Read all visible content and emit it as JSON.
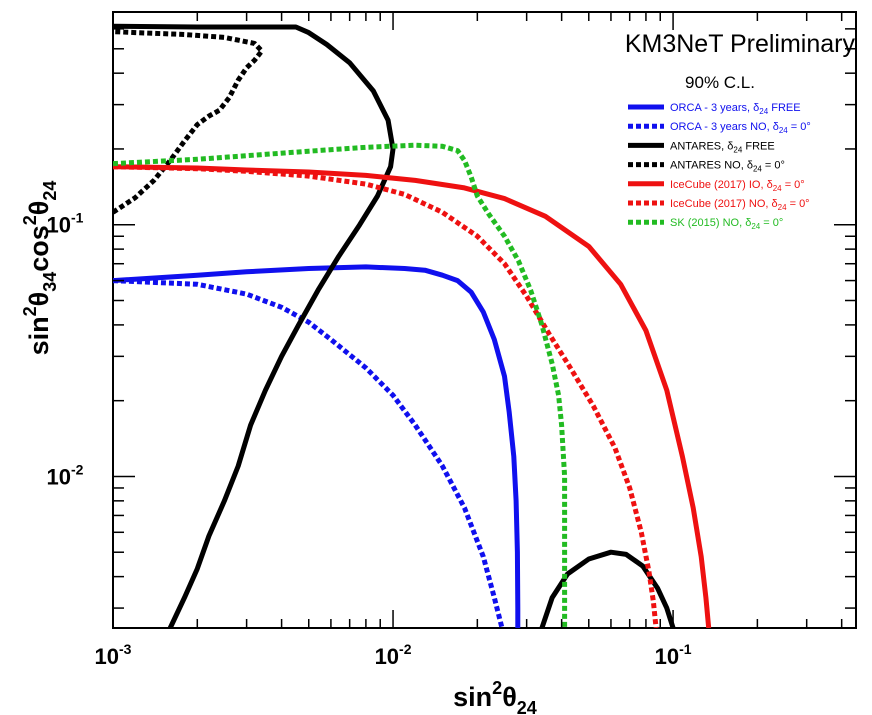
{
  "chart_data": {
    "type": "line",
    "title": "KM3NeT Preliminary",
    "subtitle": "90% C.L.",
    "xscale": "log",
    "yscale": "log",
    "xlim": [
      0.001,
      0.45
    ],
    "ylim": [
      0.0025,
      0.7
    ],
    "x_ticks": [
      {
        "value": 0.001,
        "base": "10",
        "exp": "-3"
      },
      {
        "value": 0.01,
        "base": "10",
        "exp": "-2"
      },
      {
        "value": 0.1,
        "base": "10",
        "exp": "-1"
      }
    ],
    "y_ticks": [
      {
        "value": 0.01,
        "base": "10",
        "exp": "-2"
      },
      {
        "value": 0.1,
        "base": "10",
        "exp": "-1"
      }
    ],
    "xlabel": {
      "base": "sin",
      "sup": "2",
      "theta": "θ",
      "sub": "24"
    },
    "ylabel": {
      "base1": "sin",
      "sup1": "2",
      "theta1": "θ",
      "sub1": "34",
      "base2": "cos",
      "sup2": "2",
      "theta2": "θ",
      "sub2": "24"
    },
    "grid": false,
    "legend_position": "top-right",
    "series": [
      {
        "key": "orca_free",
        "legend": {
          "pre": "ORCA - 3 years, ",
          "delta": "δ",
          "sub": "24",
          "post": " FREE"
        },
        "color": "#1010ee",
        "dash": "solid",
        "segments": [
          [
            [
              0.001,
              0.06
            ],
            [
              0.002,
              0.063
            ],
            [
              0.003,
              0.065
            ],
            [
              0.005,
              0.067
            ],
            [
              0.008,
              0.068
            ],
            [
              0.011,
              0.067
            ],
            [
              0.013,
              0.066
            ],
            [
              0.015,
              0.063
            ],
            [
              0.017,
              0.06
            ],
            [
              0.019,
              0.054
            ],
            [
              0.021,
              0.045
            ],
            [
              0.023,
              0.035
            ],
            [
              0.025,
              0.025
            ],
            [
              0.026,
              0.018
            ],
            [
              0.027,
              0.012
            ],
            [
              0.0275,
              0.008
            ],
            [
              0.0278,
              0.005
            ],
            [
              0.0279,
              0.003
            ],
            [
              0.0279,
              0.0025
            ]
          ]
        ]
      },
      {
        "key": "orca_no",
        "legend": {
          "pre": "ORCA - 3 years NO, ",
          "delta": "δ",
          "sub": "24",
          "post": " = 0°"
        },
        "color": "#1010ee",
        "dash": "dotted",
        "segments": [
          [
            [
              0.001,
              0.06
            ],
            [
              0.002,
              0.058
            ],
            [
              0.003,
              0.053
            ],
            [
              0.004,
              0.047
            ],
            [
              0.005,
              0.041
            ],
            [
              0.006,
              0.035
            ],
            [
              0.008,
              0.027
            ],
            [
              0.01,
              0.021
            ],
            [
              0.012,
              0.016
            ],
            [
              0.015,
              0.011
            ],
            [
              0.018,
              0.0075
            ],
            [
              0.021,
              0.0048
            ],
            [
              0.023,
              0.0033
            ],
            [
              0.0245,
              0.0025
            ]
          ]
        ]
      },
      {
        "key": "antares_free",
        "legend": {
          "pre": "ANTARES, ",
          "delta": "δ",
          "sub": "24",
          "post": " FREE"
        },
        "color": "#000000",
        "dash": "solid",
        "segments": [
          [
            [
              0.0016,
              0.0025
            ],
            [
              0.0018,
              0.0033
            ],
            [
              0.002,
              0.0043
            ],
            [
              0.0022,
              0.0058
            ],
            [
              0.0025,
              0.008
            ],
            [
              0.0028,
              0.011
            ],
            [
              0.0031,
              0.016
            ],
            [
              0.0035,
              0.022
            ],
            [
              0.004,
              0.03
            ],
            [
              0.0046,
              0.04
            ],
            [
              0.0054,
              0.055
            ],
            [
              0.0064,
              0.075
            ],
            [
              0.0076,
              0.1
            ],
            [
              0.0088,
              0.13
            ],
            [
              0.0098,
              0.17
            ],
            [
              0.01,
              0.2
            ],
            [
              0.0096,
              0.26
            ],
            [
              0.0085,
              0.34
            ],
            [
              0.007,
              0.44
            ],
            [
              0.0058,
              0.52
            ],
            [
              0.005,
              0.58
            ],
            [
              0.0045,
              0.61
            ],
            [
              0.003,
              0.61
            ],
            [
              0.002,
              0.61
            ],
            [
              0.001,
              0.615
            ]
          ],
          [
            [
              0.034,
              0.0025
            ],
            [
              0.037,
              0.0033
            ],
            [
              0.042,
              0.0041
            ],
            [
              0.05,
              0.0047
            ],
            [
              0.06,
              0.005
            ],
            [
              0.068,
              0.0049
            ],
            [
              0.078,
              0.0044
            ],
            [
              0.088,
              0.0036
            ],
            [
              0.095,
              0.003
            ],
            [
              0.1,
              0.0025
            ]
          ]
        ]
      },
      {
        "key": "antares_no",
        "legend": {
          "pre": "ANTARES NO, ",
          "delta": "δ",
          "sub": "24",
          "post": " = 0°"
        },
        "color": "#000000",
        "dash": "dotted",
        "segments": [
          [
            [
              0.001,
              0.112
            ],
            [
              0.0012,
              0.128
            ],
            [
              0.0014,
              0.15
            ],
            [
              0.0016,
              0.18
            ],
            [
              0.0018,
              0.215
            ],
            [
              0.002,
              0.25
            ],
            [
              0.0022,
              0.27
            ],
            [
              0.0024,
              0.285
            ],
            [
              0.0026,
              0.32
            ],
            [
              0.0028,
              0.375
            ],
            [
              0.003,
              0.42
            ],
            [
              0.0032,
              0.45
            ],
            [
              0.0034,
              0.49
            ],
            [
              0.0032,
              0.525
            ],
            [
              0.0025,
              0.555
            ],
            [
              0.0018,
              0.57
            ],
            [
              0.0012,
              0.58
            ],
            [
              0.001,
              0.585
            ]
          ]
        ]
      },
      {
        "key": "icecube_io",
        "legend": {
          "pre": "IceCube (2017) IO, ",
          "delta": "δ",
          "sub": "24",
          "post": " = 0°"
        },
        "color": "#ee1111",
        "dash": "solid",
        "segments": [
          [
            [
              0.001,
              0.17
            ],
            [
              0.002,
              0.168
            ],
            [
              0.003,
              0.165
            ],
            [
              0.005,
              0.162
            ],
            [
              0.008,
              0.157
            ],
            [
              0.012,
              0.15
            ],
            [
              0.018,
              0.14
            ],
            [
              0.025,
              0.127
            ],
            [
              0.035,
              0.108
            ],
            [
              0.05,
              0.082
            ],
            [
              0.065,
              0.058
            ],
            [
              0.08,
              0.038
            ],
            [
              0.095,
              0.022
            ],
            [
              0.108,
              0.012
            ],
            [
              0.118,
              0.0075
            ],
            [
              0.126,
              0.0048
            ],
            [
              0.131,
              0.0033
            ],
            [
              0.134,
              0.0025
            ]
          ]
        ]
      },
      {
        "key": "icecube_no",
        "legend": {
          "pre": "IceCube (2017) NO, ",
          "delta": "δ",
          "sub": "24",
          "post": " = 0°"
        },
        "color": "#ee1111",
        "dash": "dotted",
        "segments": [
          [
            [
              0.001,
              0.17
            ],
            [
              0.002,
              0.167
            ],
            [
              0.003,
              0.163
            ],
            [
              0.005,
              0.156
            ],
            [
              0.008,
              0.145
            ],
            [
              0.011,
              0.132
            ],
            [
              0.015,
              0.112
            ],
            [
              0.02,
              0.09
            ],
            [
              0.025,
              0.07
            ],
            [
              0.03,
              0.052
            ],
            [
              0.036,
              0.037
            ],
            [
              0.043,
              0.027
            ],
            [
              0.052,
              0.019
            ],
            [
              0.062,
              0.013
            ],
            [
              0.07,
              0.009
            ],
            [
              0.077,
              0.006
            ],
            [
              0.082,
              0.0042
            ],
            [
              0.085,
              0.0032
            ],
            [
              0.087,
              0.0025
            ]
          ]
        ]
      },
      {
        "key": "sk_no",
        "legend": {
          "pre": "SK (2015) NO, ",
          "delta": "δ",
          "sub": "24",
          "post": " = 0°"
        },
        "color": "#22bb22",
        "dash": "dotted",
        "segments": [
          [
            [
              0.001,
              0.175
            ],
            [
              0.002,
              0.182
            ],
            [
              0.003,
              0.188
            ],
            [
              0.005,
              0.196
            ],
            [
              0.008,
              0.203
            ],
            [
              0.012,
              0.207
            ],
            [
              0.015,
              0.205
            ],
            [
              0.017,
              0.197
            ],
            [
              0.018,
              0.18
            ],
            [
              0.019,
              0.155
            ],
            [
              0.02,
              0.13
            ],
            [
              0.022,
              0.11
            ],
            [
              0.025,
              0.09
            ],
            [
              0.028,
              0.072
            ],
            [
              0.031,
              0.055
            ],
            [
              0.034,
              0.04
            ],
            [
              0.037,
              0.028
            ],
            [
              0.039,
              0.021
            ],
            [
              0.04,
              0.016
            ],
            [
              0.041,
              0.01
            ],
            [
              0.041,
              0.005
            ],
            [
              0.041,
              0.0025
            ]
          ]
        ]
      }
    ]
  }
}
